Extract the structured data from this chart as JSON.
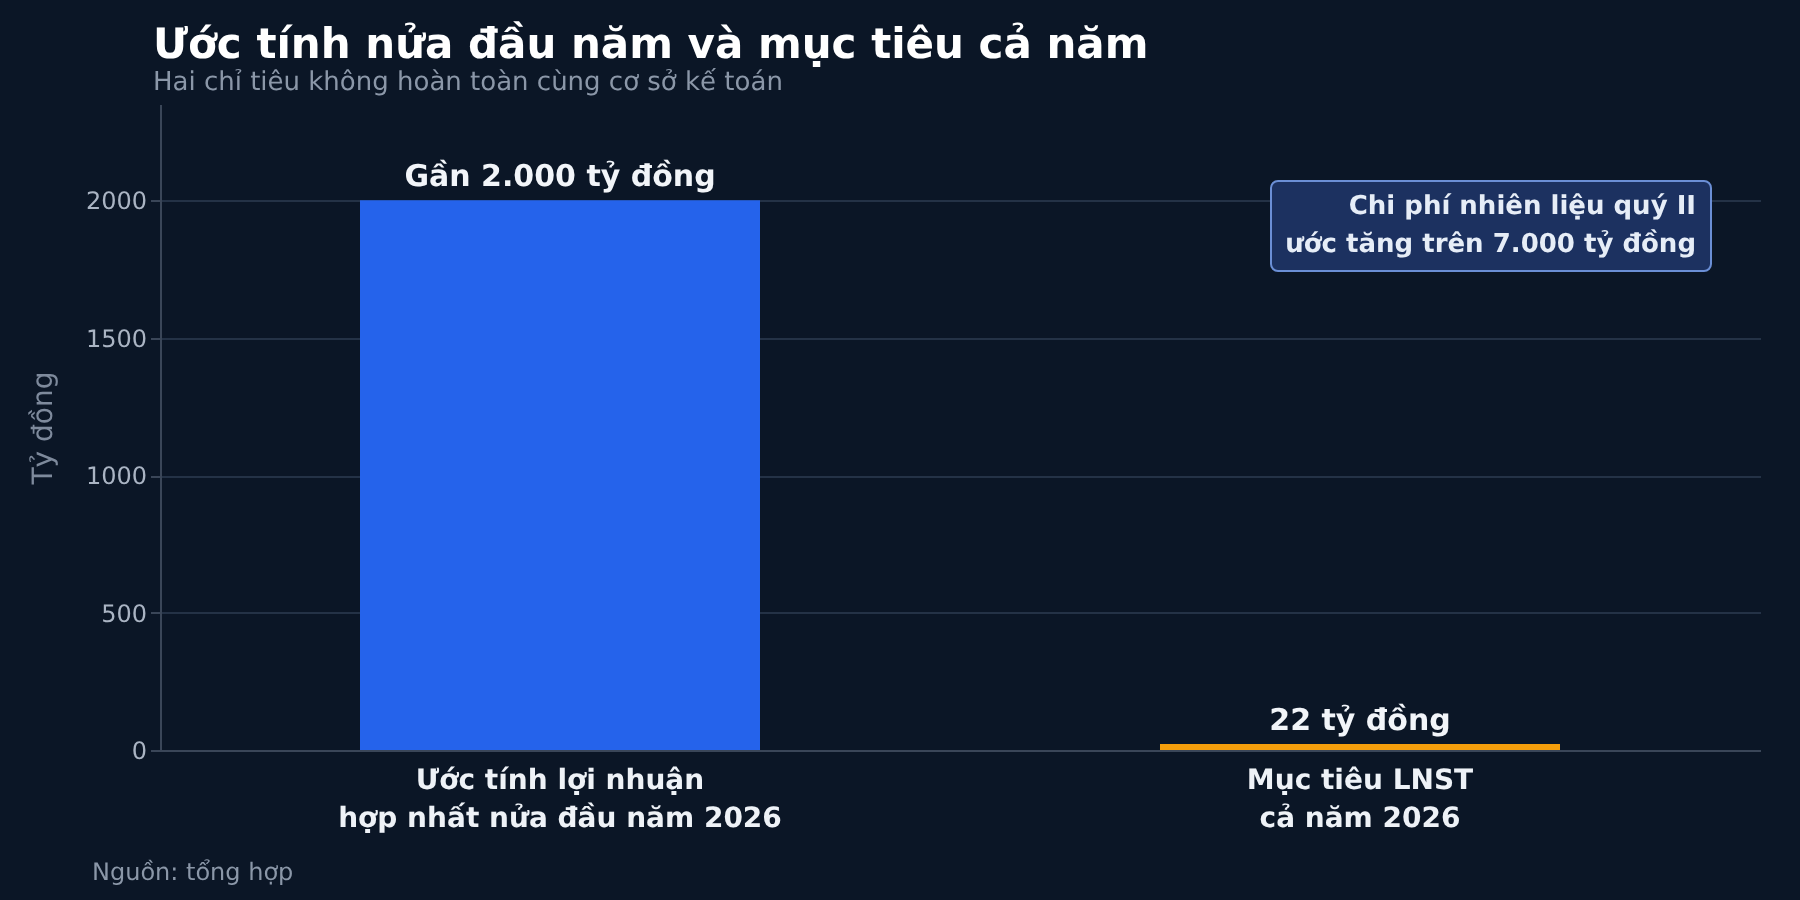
{
  "chart_data": {
    "type": "bar",
    "title": "Ước tính nửa đầu năm và mục tiêu cả năm",
    "subtitle": "Hai chỉ tiêu không hoàn toàn cùng cơ sở kế toán",
    "ylabel": "Tỷ đồng",
    "categories": [
      "Ước tính lợi nhuận\nhợp nhất nửa đầu năm 2026",
      "Mục tiêu LNST\ncả năm 2026"
    ],
    "values": [
      2000,
      22
    ],
    "colors": [
      "#2563eb",
      "#f59e0b"
    ],
    "value_labels": [
      "Gần 2.000 tỷ đồng",
      "22 tỷ đồng"
    ],
    "ylim": [
      0,
      2350
    ],
    "yticks": [
      0,
      500,
      1000,
      1500,
      2000
    ],
    "grid": "y",
    "annotations": [
      "Chi phí nhiên liệu quý II\nước tăng trên 7.000 tỷ đồng",
      "Nguồn: tổng hợp"
    ]
  }
}
